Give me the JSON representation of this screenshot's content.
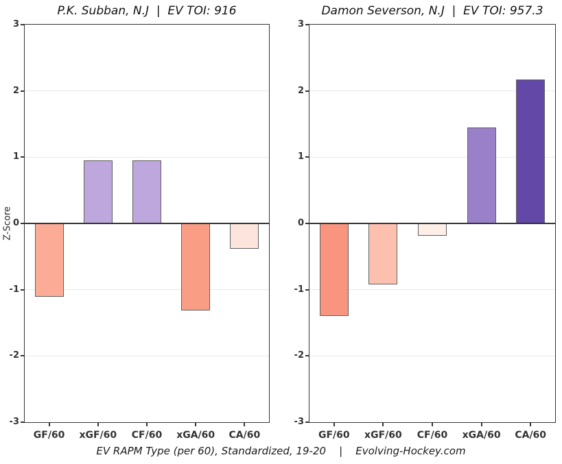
{
  "meta": {
    "ylabel": "Z-Score",
    "caption": "EV RAPM Type (per 60), Standardized, 19-20    |    Evolving-Hockey.com"
  },
  "colors": {
    "axis_line": "#333333",
    "gridline": "#e9e9e9",
    "bar_border": "#5f5f5f",
    "text": "#333333"
  },
  "chart_data": [
    {
      "type": "bar",
      "title": "P.K. Subban, N.J  |  EV TOI: 916",
      "categories": [
        "GF/60",
        "xGF/60",
        "CF/60",
        "xGA/60",
        "CA/60"
      ],
      "values": [
        -1.11,
        0.95,
        0.95,
        -1.31,
        -0.38
      ],
      "bar_colors": [
        "#fcab97",
        "#bda7dc",
        "#bda7dc",
        "#fa9d85",
        "#fde4dc"
      ],
      "ylabel": "Z-Score",
      "xlabel": "",
      "ylim": [
        -3,
        3
      ],
      "yticks": [
        3,
        2,
        1,
        0,
        -1,
        -2,
        -3
      ],
      "grid": true,
      "legend": false
    },
    {
      "type": "bar",
      "title": "Damon Severson, N.J  |  EV TOI: 957.3",
      "categories": [
        "GF/60",
        "xGF/60",
        "CF/60",
        "xGA/60",
        "CA/60"
      ],
      "values": [
        -1.4,
        -0.92,
        -0.19,
        1.45,
        2.17
      ],
      "bar_colors": [
        "#f9957e",
        "#fec0ae",
        "#fdeee8",
        "#9a80c8",
        "#6348a8"
      ],
      "ylabel": "Z-Score",
      "xlabel": "",
      "ylim": [
        -3,
        3
      ],
      "yticks": [
        3,
        2,
        1,
        0,
        -1,
        -2,
        -3
      ],
      "grid": true,
      "legend": false
    }
  ]
}
